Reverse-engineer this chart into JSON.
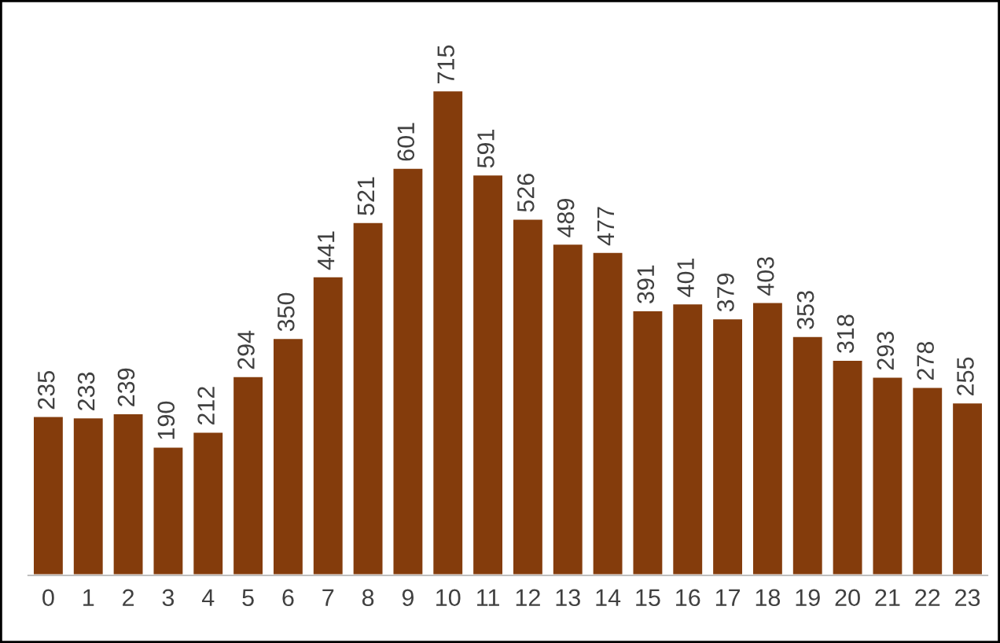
{
  "chart_data": {
    "type": "bar",
    "categories": [
      "0",
      "1",
      "2",
      "3",
      "4",
      "5",
      "6",
      "7",
      "8",
      "9",
      "10",
      "11",
      "12",
      "13",
      "14",
      "15",
      "16",
      "17",
      "18",
      "19",
      "20",
      "21",
      "22",
      "23"
    ],
    "values": [
      235,
      233,
      239,
      190,
      212,
      294,
      350,
      441,
      521,
      601,
      715,
      591,
      526,
      489,
      477,
      391,
      401,
      379,
      403,
      353,
      318,
      293,
      278,
      255
    ],
    "color": "#843c0c",
    "data_labels": true
  }
}
